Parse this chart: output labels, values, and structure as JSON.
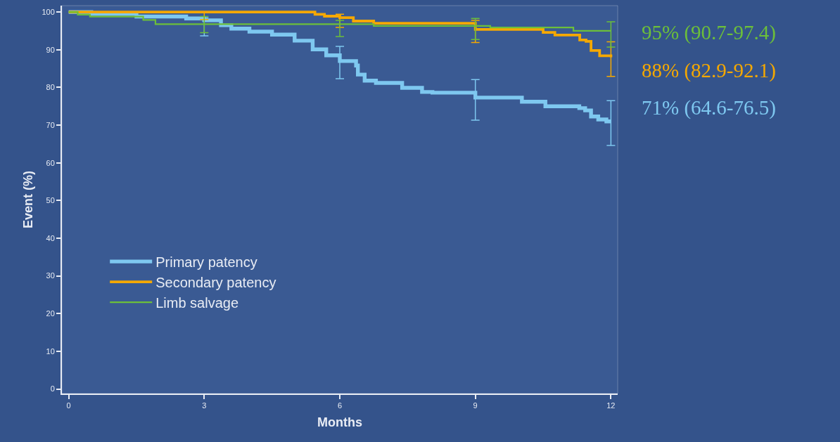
{
  "chart_data": {
    "type": "step",
    "xlabel": "Months",
    "ylabel": "Event (%)",
    "xlim": [
      -0.15,
      12.15
    ],
    "xticks": [
      0,
      3,
      6,
      9,
      12
    ],
    "ylim": [
      -1.2,
      101.7
    ],
    "yticks": [
      0,
      10,
      20,
      30,
      40,
      50,
      60,
      70,
      80,
      90,
      100
    ],
    "grid": false,
    "legend": "bottom left",
    "marker": "none",
    "line_style": "solid",
    "series": [
      {
        "name": "Primary patency",
        "color": "#7ec8f0",
        "x": [
          0,
          0.5,
          1.5,
          2.6,
          3,
          3.37,
          3.6,
          4,
          4.5,
          5,
          5.4,
          5.7,
          6,
          6.36,
          6.4,
          6.55,
          6.8,
          7.38,
          7.82,
          8.05,
          9,
          10.03,
          10.55,
          11.3,
          11.43,
          11.56,
          11.72,
          11.9,
          12
        ],
        "values": [
          100,
          99.5,
          98.8,
          98.3,
          97.8,
          96.5,
          95.6,
          94.8,
          94,
          92.4,
          90.1,
          88.5,
          87,
          85.8,
          83.4,
          81.8,
          81.2,
          79.9,
          78.8,
          78.6,
          77.3,
          76.2,
          75,
          74.5,
          73.9,
          72.3,
          71.5,
          71,
          71
        ],
        "errors": [
          null,
          null,
          null,
          null,
          [
            93.7,
            98.5
          ],
          null,
          null,
          null,
          null,
          null,
          null,
          null,
          [
            82.3,
            90.9
          ],
          null,
          null,
          null,
          null,
          null,
          null,
          null,
          [
            71.3,
            82.1
          ],
          null,
          null,
          null,
          null,
          null,
          null,
          null,
          [
            64.6,
            76.5
          ]
        ]
      },
      {
        "name": "Secondary patency",
        "color": "#f5a800",
        "x": [
          0,
          3,
          5.24,
          5.45,
          5.66,
          6,
          6.3,
          6.75,
          9,
          10.5,
          10.76,
          11.31,
          11.45,
          11.56,
          11.75,
          12
        ],
        "values": [
          100,
          100,
          100,
          99.4,
          98.9,
          98.5,
          97.6,
          97,
          95.4,
          94.6,
          93.9,
          92.6,
          92.2,
          89.8,
          88.4,
          88
        ],
        "errors": [
          null,
          [
            98,
            100
          ],
          null,
          null,
          null,
          [
            95.9,
            99.4
          ],
          null,
          null,
          [
            91.9,
            97.8
          ],
          null,
          null,
          null,
          null,
          null,
          null,
          [
            82.9,
            92.1
          ]
        ]
      },
      {
        "name": "Limb salvage",
        "color": "#6cbf3a",
        "x": [
          0,
          0.2,
          0.47,
          1.65,
          1.92,
          3,
          6,
          6.75,
          9,
          9.33,
          11.17,
          12
        ],
        "values": [
          100,
          99.3,
          98.8,
          97.9,
          96.8,
          96.8,
          96.8,
          96.3,
          96.3,
          95.9,
          95,
          95
        ],
        "errors": [
          null,
          null,
          null,
          null,
          null,
          [
            94.5,
            98.8
          ],
          [
            93.5,
            97.8
          ],
          null,
          [
            92.7,
            98.3
          ],
          null,
          null,
          [
            90.7,
            97.4
          ]
        ]
      }
    ],
    "annotations": [
      "95% (90.7-97.4)",
      "88% (82.9-92.1)",
      "71% (64.6-76.5)"
    ]
  }
}
